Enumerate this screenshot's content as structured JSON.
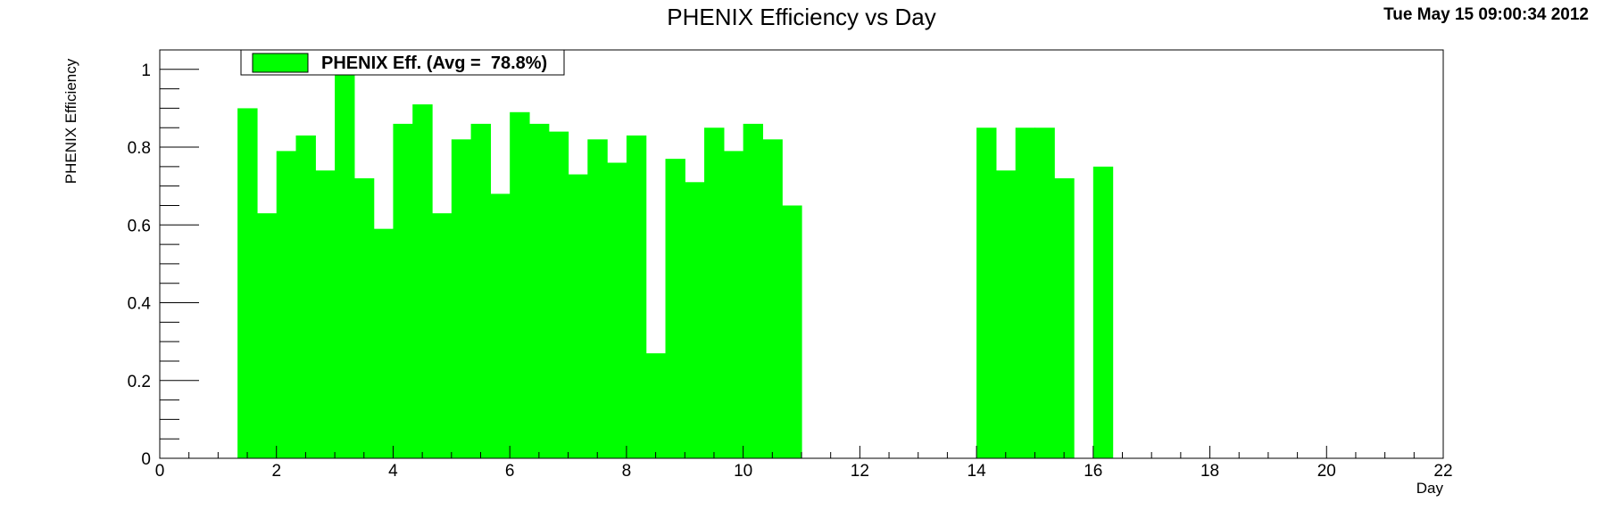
{
  "title": "PHENIX Efficiency vs Day",
  "timestamp": "Tue May 15 09:00:34 2012",
  "colors": {
    "bar": "#00ff00",
    "axis": "#000000",
    "background": "#ffffff"
  },
  "chart_data": {
    "type": "bar",
    "title": "PHENIX Efficiency vs Day",
    "xlabel": "Day",
    "ylabel": "PHENIX Efficiency",
    "xlim": [
      0,
      22
    ],
    "ylim": [
      0,
      1.05
    ],
    "x_ticks": [
      "0",
      "2",
      "4",
      "6",
      "8",
      "10",
      "12",
      "14",
      "16",
      "18",
      "20",
      "22"
    ],
    "y_ticks": [
      "0",
      "0.2",
      "0.4",
      "0.6",
      "0.8",
      "1"
    ],
    "legend": {
      "label": "PHENIX Eff. (Avg =  78.8%)",
      "position": "top-left"
    },
    "grid": false,
    "series": [
      {
        "name": "PHENIX Eff. (Avg =  78.8%)",
        "color": "#00ff00",
        "bins": [
          {
            "x0": 1.333,
            "x1": 1.667,
            "value": 0.9
          },
          {
            "x0": 1.667,
            "x1": 2.0,
            "value": 0.63
          },
          {
            "x0": 2.0,
            "x1": 2.333,
            "value": 0.79
          },
          {
            "x0": 2.333,
            "x1": 2.667,
            "value": 0.83
          },
          {
            "x0": 2.667,
            "x1": 3.0,
            "value": 0.74
          },
          {
            "x0": 3.0,
            "x1": 3.333,
            "value": 1.0
          },
          {
            "x0": 3.333,
            "x1": 3.667,
            "value": 0.72
          },
          {
            "x0": 3.667,
            "x1": 4.0,
            "value": 0.59
          },
          {
            "x0": 4.0,
            "x1": 4.333,
            "value": 0.86
          },
          {
            "x0": 4.333,
            "x1": 4.667,
            "value": 0.91
          },
          {
            "x0": 4.667,
            "x1": 5.0,
            "value": 0.63
          },
          {
            "x0": 5.0,
            "x1": 5.333,
            "value": 0.82
          },
          {
            "x0": 5.333,
            "x1": 5.667,
            "value": 0.86
          },
          {
            "x0": 5.667,
            "x1": 6.0,
            "value": 0.68
          },
          {
            "x0": 6.0,
            "x1": 6.333,
            "value": 0.89
          },
          {
            "x0": 6.333,
            "x1": 6.667,
            "value": 0.86
          },
          {
            "x0": 6.667,
            "x1": 7.0,
            "value": 0.84
          },
          {
            "x0": 7.0,
            "x1": 7.333,
            "value": 0.73
          },
          {
            "x0": 7.333,
            "x1": 7.667,
            "value": 0.82
          },
          {
            "x0": 7.667,
            "x1": 8.0,
            "value": 0.76
          },
          {
            "x0": 8.0,
            "x1": 8.333,
            "value": 0.83
          },
          {
            "x0": 8.333,
            "x1": 8.667,
            "value": 0.27
          },
          {
            "x0": 8.667,
            "x1": 9.0,
            "value": 0.77
          },
          {
            "x0": 9.0,
            "x1": 9.333,
            "value": 0.71
          },
          {
            "x0": 9.333,
            "x1": 9.667,
            "value": 0.85
          },
          {
            "x0": 9.667,
            "x1": 10.0,
            "value": 0.79
          },
          {
            "x0": 10.0,
            "x1": 10.333,
            "value": 0.86
          },
          {
            "x0": 10.333,
            "x1": 10.667,
            "value": 0.82
          },
          {
            "x0": 10.667,
            "x1": 11.0,
            "value": 0.65
          },
          {
            "x0": 14.0,
            "x1": 14.333,
            "value": 0.85
          },
          {
            "x0": 14.333,
            "x1": 14.667,
            "value": 0.74
          },
          {
            "x0": 14.667,
            "x1": 15.0,
            "value": 0.85
          },
          {
            "x0": 15.0,
            "x1": 15.333,
            "value": 0.85
          },
          {
            "x0": 15.333,
            "x1": 15.667,
            "value": 0.72
          },
          {
            "x0": 16.0,
            "x1": 16.333,
            "value": 0.75
          }
        ]
      }
    ]
  }
}
